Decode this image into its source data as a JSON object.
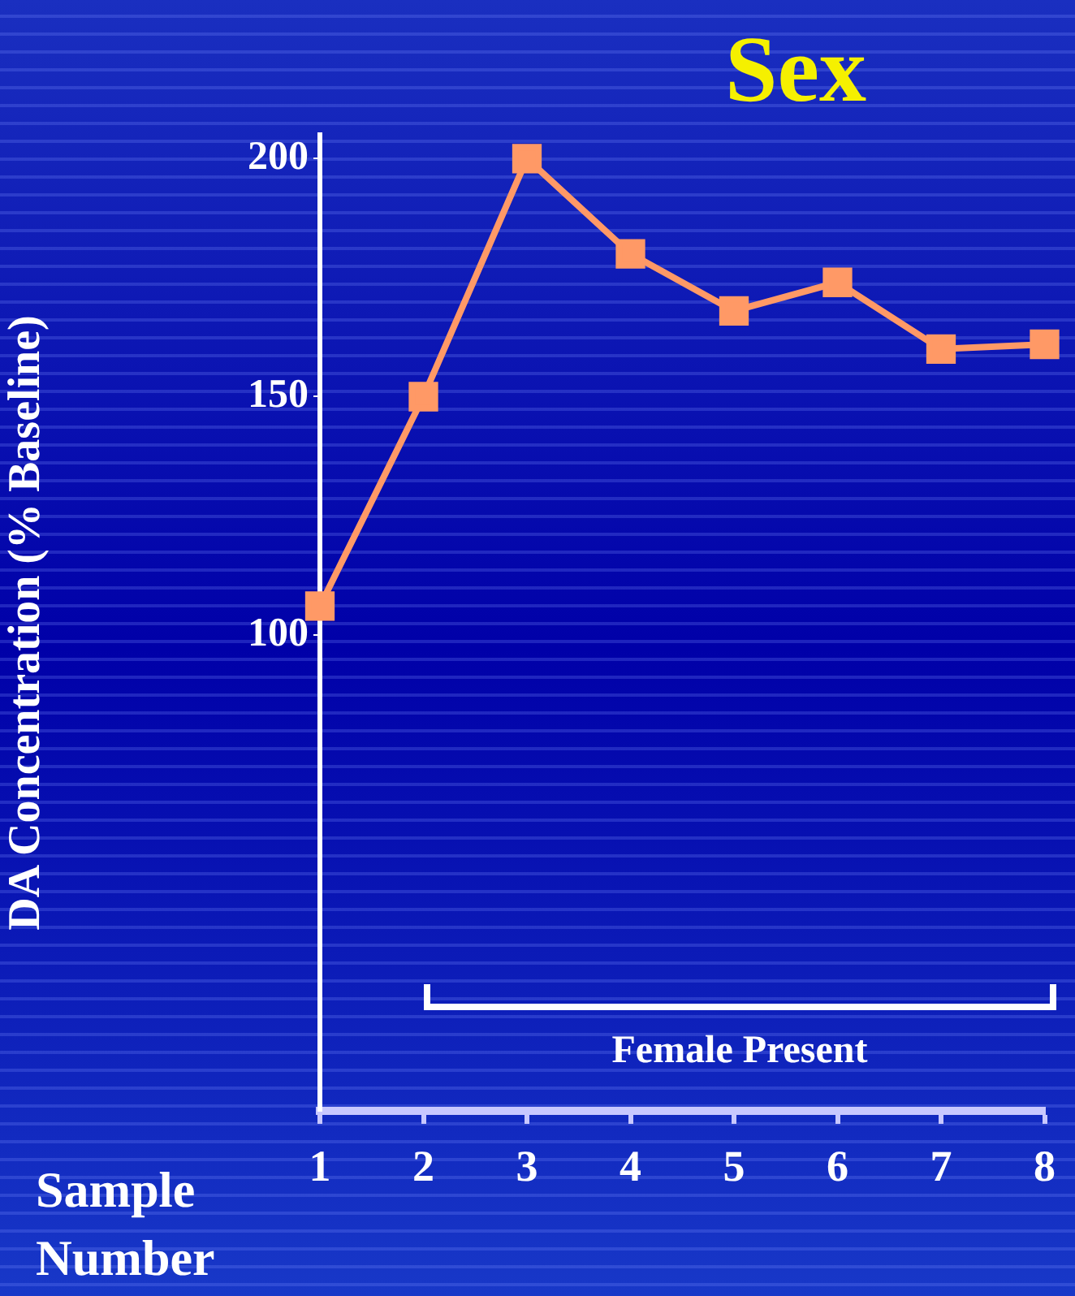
{
  "chart_data": {
    "type": "line",
    "title": "Sex",
    "xlabel": "Sample Number",
    "ylabel": "DA Concentration (% Baseline)",
    "categories": [
      "1",
      "2",
      "3",
      "4",
      "5",
      "6",
      "7",
      "8"
    ],
    "series": [
      {
        "color": "#ff9966",
        "values": [
          106,
          150,
          200,
          180,
          168,
          174,
          160,
          161
        ]
      }
    ],
    "ylim": [
      0,
      205
    ],
    "yticks": [
      100,
      150,
      200
    ],
    "marker": "square",
    "annotations": [
      "Female Present"
    ]
  }
}
